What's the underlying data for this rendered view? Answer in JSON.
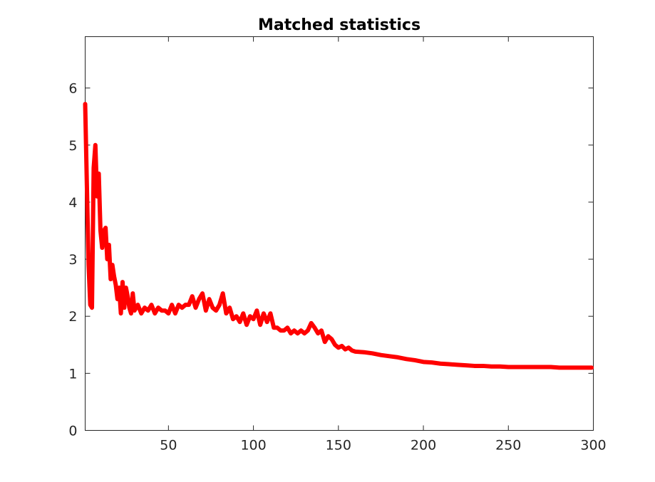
{
  "chart_data": {
    "type": "line",
    "title": "Matched statistics",
    "xlabel": "",
    "ylabel": "",
    "xlim": [
      1,
      300
    ],
    "ylim": [
      0,
      6.9
    ],
    "x_ticks": [
      50,
      100,
      150,
      200,
      250,
      300
    ],
    "y_ticks": [
      0,
      1,
      2,
      3,
      4,
      5,
      6
    ],
    "grid": false,
    "box": true,
    "series": [
      {
        "color": "#ff0000",
        "points": [
          [
            1,
            5.72
          ],
          [
            2,
            4.3
          ],
          [
            3,
            2.9
          ],
          [
            4,
            2.2
          ],
          [
            5,
            2.15
          ],
          [
            6,
            4.6
          ],
          [
            7,
            5.0
          ],
          [
            8,
            4.1
          ],
          [
            9,
            4.5
          ],
          [
            10,
            3.5
          ],
          [
            11,
            3.2
          ],
          [
            12,
            3.5
          ],
          [
            13,
            3.55
          ],
          [
            14,
            3.0
          ],
          [
            15,
            3.25
          ],
          [
            16,
            2.65
          ],
          [
            17,
            2.9
          ],
          [
            18,
            2.7
          ],
          [
            19,
            2.55
          ],
          [
            20,
            2.3
          ],
          [
            21,
            2.5
          ],
          [
            22,
            2.05
          ],
          [
            23,
            2.6
          ],
          [
            24,
            2.15
          ],
          [
            25,
            2.5
          ],
          [
            26,
            2.35
          ],
          [
            27,
            2.15
          ],
          [
            28,
            2.05
          ],
          [
            29,
            2.4
          ],
          [
            30,
            2.1
          ],
          [
            32,
            2.2
          ],
          [
            34,
            2.05
          ],
          [
            36,
            2.15
          ],
          [
            38,
            2.1
          ],
          [
            40,
            2.2
          ],
          [
            42,
            2.05
          ],
          [
            44,
            2.15
          ],
          [
            46,
            2.1
          ],
          [
            48,
            2.1
          ],
          [
            50,
            2.05
          ],
          [
            52,
            2.2
          ],
          [
            54,
            2.05
          ],
          [
            56,
            2.2
          ],
          [
            58,
            2.15
          ],
          [
            60,
            2.2
          ],
          [
            62,
            2.2
          ],
          [
            64,
            2.35
          ],
          [
            66,
            2.15
          ],
          [
            68,
            2.3
          ],
          [
            70,
            2.4
          ],
          [
            72,
            2.1
          ],
          [
            74,
            2.3
          ],
          [
            76,
            2.15
          ],
          [
            78,
            2.1
          ],
          [
            80,
            2.2
          ],
          [
            82,
            2.4
          ],
          [
            84,
            2.05
          ],
          [
            86,
            2.15
          ],
          [
            88,
            1.95
          ],
          [
            90,
            2.0
          ],
          [
            92,
            1.9
          ],
          [
            94,
            2.05
          ],
          [
            96,
            1.85
          ],
          [
            98,
            2.0
          ],
          [
            100,
            1.95
          ],
          [
            102,
            2.1
          ],
          [
            104,
            1.85
          ],
          [
            106,
            2.05
          ],
          [
            108,
            1.9
          ],
          [
            110,
            2.05
          ],
          [
            112,
            1.8
          ],
          [
            114,
            1.8
          ],
          [
            116,
            1.75
          ],
          [
            118,
            1.75
          ],
          [
            120,
            1.8
          ],
          [
            122,
            1.7
          ],
          [
            124,
            1.75
          ],
          [
            126,
            1.7
          ],
          [
            128,
            1.75
          ],
          [
            130,
            1.7
          ],
          [
            132,
            1.75
          ],
          [
            134,
            1.88
          ],
          [
            136,
            1.8
          ],
          [
            138,
            1.7
          ],
          [
            140,
            1.75
          ],
          [
            142,
            1.55
          ],
          [
            144,
            1.65
          ],
          [
            146,
            1.6
          ],
          [
            148,
            1.5
          ],
          [
            150,
            1.45
          ],
          [
            152,
            1.48
          ],
          [
            154,
            1.42
          ],
          [
            156,
            1.45
          ],
          [
            158,
            1.4
          ],
          [
            160,
            1.38
          ],
          [
            165,
            1.37
          ],
          [
            170,
            1.35
          ],
          [
            175,
            1.32
          ],
          [
            180,
            1.3
          ],
          [
            185,
            1.28
          ],
          [
            190,
            1.25
          ],
          [
            195,
            1.23
          ],
          [
            200,
            1.2
          ],
          [
            205,
            1.19
          ],
          [
            210,
            1.17
          ],
          [
            215,
            1.16
          ],
          [
            220,
            1.15
          ],
          [
            225,
            1.14
          ],
          [
            230,
            1.13
          ],
          [
            235,
            1.13
          ],
          [
            240,
            1.12
          ],
          [
            245,
            1.12
          ],
          [
            250,
            1.11
          ],
          [
            255,
            1.11
          ],
          [
            260,
            1.11
          ],
          [
            265,
            1.11
          ],
          [
            270,
            1.11
          ],
          [
            275,
            1.11
          ],
          [
            280,
            1.1
          ],
          [
            285,
            1.1
          ],
          [
            290,
            1.1
          ],
          [
            295,
            1.1
          ],
          [
            299,
            1.1
          ]
        ]
      }
    ]
  }
}
